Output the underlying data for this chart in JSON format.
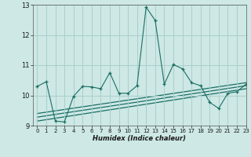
{
  "xlabel": "Humidex (Indice chaleur)",
  "background_color": "#cde8e5",
  "grid_color": "#aacfcc",
  "line_color": "#1a6e64",
  "xlim": [
    -0.5,
    23
  ],
  "ylim": [
    9,
    13
  ],
  "yticks": [
    9,
    10,
    11,
    12,
    13
  ],
  "xticks": [
    0,
    1,
    2,
    3,
    4,
    5,
    6,
    7,
    8,
    9,
    10,
    11,
    12,
    13,
    14,
    15,
    16,
    17,
    18,
    19,
    20,
    21,
    22,
    23
  ],
  "main_x": [
    0,
    1,
    2,
    3,
    4,
    5,
    6,
    7,
    8,
    9,
    10,
    11,
    12,
    13,
    14,
    15,
    16,
    17,
    18,
    19,
    20,
    21,
    22,
    23
  ],
  "main_y": [
    10.3,
    10.45,
    9.15,
    9.12,
    9.97,
    10.3,
    10.28,
    10.22,
    10.75,
    10.07,
    10.07,
    10.32,
    12.92,
    12.48,
    10.37,
    11.02,
    10.88,
    10.42,
    10.32,
    9.77,
    9.57,
    10.07,
    10.12,
    10.37
  ],
  "reg_lines": [
    [
      [
        0,
        23
      ],
      [
        9.15,
        10.22
      ]
    ],
    [
      [
        0,
        23
      ],
      [
        9.28,
        10.32
      ]
    ],
    [
      [
        0,
        23
      ],
      [
        9.4,
        10.42
      ]
    ]
  ]
}
